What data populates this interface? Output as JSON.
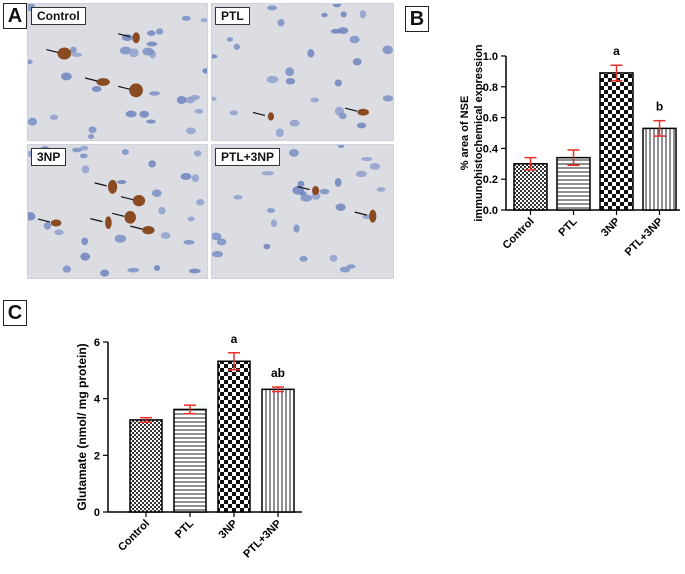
{
  "panels": {
    "a": "A",
    "b": "B",
    "c": "C"
  },
  "micrographs": [
    {
      "label": "Control"
    },
    {
      "label": "PTL"
    },
    {
      "label": "3NP"
    },
    {
      "label": "PTL+3NP"
    }
  ],
  "chart_data": [
    {
      "type": "bar",
      "categories": [
        "Control",
        "PTL",
        "3NP",
        "PTL+3NP"
      ],
      "values": [
        0.3,
        0.34,
        0.89,
        0.53
      ],
      "errors": [
        0.04,
        0.05,
        0.05,
        0.05
      ],
      "annotations": [
        "",
        "",
        "a",
        "b"
      ],
      "ylabel_line1": "% area of NSE",
      "ylabel_line2": "immunohistochemical expression",
      "ylim": [
        0,
        1.0
      ],
      "yticks": [
        "0.0",
        "0.2",
        "0.4",
        "0.6",
        "0.8",
        "1.0"
      ],
      "ytick_values": [
        0,
        0.2,
        0.4,
        0.6,
        0.8,
        1.0
      ],
      "patterns": [
        "checker",
        "hlines",
        "bigchecker",
        "vlines"
      ],
      "error_color": "#e8302a"
    },
    {
      "type": "bar",
      "categories": [
        "Control",
        "PTL",
        "3NP",
        "PTL+3NP"
      ],
      "values": [
        3.25,
        3.62,
        5.32,
        4.33
      ],
      "errors": [
        0.08,
        0.15,
        0.3,
        0.08
      ],
      "annotations": [
        "",
        "",
        "a",
        "ab"
      ],
      "ylabel": "Glutamate (nmol/ mg protein)",
      "ylim": [
        0,
        6
      ],
      "yticks": [
        "0",
        "2",
        "4",
        "6"
      ],
      "ytick_values": [
        0,
        2,
        4,
        6
      ],
      "patterns": [
        "checker",
        "hlines",
        "bigchecker",
        "vlines"
      ],
      "error_color": "#e8302a"
    }
  ]
}
